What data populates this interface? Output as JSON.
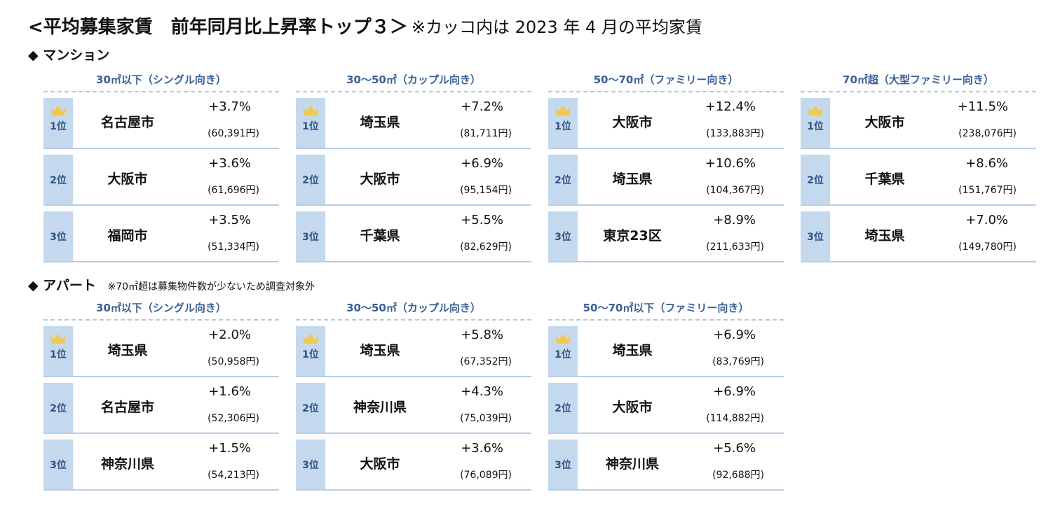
{
  "title": {
    "main": "<平均募集家賃　前年同月比上昇率トップ３＞",
    "note": "※カッコ内は 2023 年 4 月の平均家賃"
  },
  "colors": {
    "accent": "#3a5f96",
    "rank_bg": "#c5d9ee",
    "crown": "#f2c94c"
  },
  "mansion": {
    "heading": "◆ マンション",
    "blocks": [
      {
        "header": "30㎡以下（シングル向き）",
        "rows": [
          {
            "rank": "1位",
            "city": "名古屋市",
            "pct": "+3.7%",
            "rent": "(60,391円)"
          },
          {
            "rank": "2位",
            "city": "大阪市",
            "pct": "+3.6%",
            "rent": "(61,696円)"
          },
          {
            "rank": "3位",
            "city": "福岡市",
            "pct": "+3.5%",
            "rent": "(51,334円)"
          }
        ]
      },
      {
        "header": "30〜50㎡（カップル向き）",
        "rows": [
          {
            "rank": "1位",
            "city": "埼玉県",
            "pct": "+7.2%",
            "rent": "(81,711円)"
          },
          {
            "rank": "2位",
            "city": "大阪市",
            "pct": "+6.9%",
            "rent": "(95,154円)"
          },
          {
            "rank": "3位",
            "city": "千葉県",
            "pct": "+5.5%",
            "rent": "(82,629円)"
          }
        ]
      },
      {
        "header": "50〜70㎡（ファミリー向き）",
        "rows": [
          {
            "rank": "1位",
            "city": "大阪市",
            "pct": "+12.4%",
            "rent": "(133,883円)"
          },
          {
            "rank": "2位",
            "city": "埼玉県",
            "pct": "+10.6%",
            "rent": "(104,367円)"
          },
          {
            "rank": "3位",
            "city": "東京23区",
            "pct": "+8.9%",
            "rent": "(211,633円)"
          }
        ]
      },
      {
        "header": "70㎡超（大型ファミリー向き）",
        "rows": [
          {
            "rank": "1位",
            "city": "大阪市",
            "pct": "+11.5%",
            "rent": "(238,076円)"
          },
          {
            "rank": "2位",
            "city": "千葉県",
            "pct": "+8.6%",
            "rent": "(151,767円)"
          },
          {
            "rank": "3位",
            "city": "埼玉県",
            "pct": "+7.0%",
            "rent": "(149,780円)"
          }
        ]
      }
    ]
  },
  "apart": {
    "heading": "◆ アパート",
    "note": "※70㎡超は募集物件数が少ないため調査対象外",
    "blocks": [
      {
        "header": "30㎡以下（シングル向き）",
        "rows": [
          {
            "rank": "1位",
            "city": "埼玉県",
            "pct": "+2.0%",
            "rent": "(50,958円)"
          },
          {
            "rank": "2位",
            "city": "名古屋市",
            "pct": "+1.6%",
            "rent": "(52,306円)"
          },
          {
            "rank": "3位",
            "city": "神奈川県",
            "pct": "+1.5%",
            "rent": "(54,213円)"
          }
        ]
      },
      {
        "header": "30〜50㎡（カップル向き）",
        "rows": [
          {
            "rank": "1位",
            "city": "埼玉県",
            "pct": "+5.8%",
            "rent": "(67,352円)"
          },
          {
            "rank": "2位",
            "city": "神奈川県",
            "pct": "+4.3%",
            "rent": "(75,039円)"
          },
          {
            "rank": "3位",
            "city": "大阪市",
            "pct": "+3.6%",
            "rent": "(76,089円)"
          }
        ]
      },
      {
        "header": "50〜70㎡以下（ファミリー向き）",
        "rows": [
          {
            "rank": "1位",
            "city": "埼玉県",
            "pct": "+6.9%",
            "rent": "(83,769円)"
          },
          {
            "rank": "2位",
            "city": "大阪市",
            "pct": "+6.9%",
            "rent": "(114,882円)"
          },
          {
            "rank": "3位",
            "city": "神奈川県",
            "pct": "+5.6%",
            "rent": "(92,688円)"
          }
        ]
      }
    ]
  }
}
